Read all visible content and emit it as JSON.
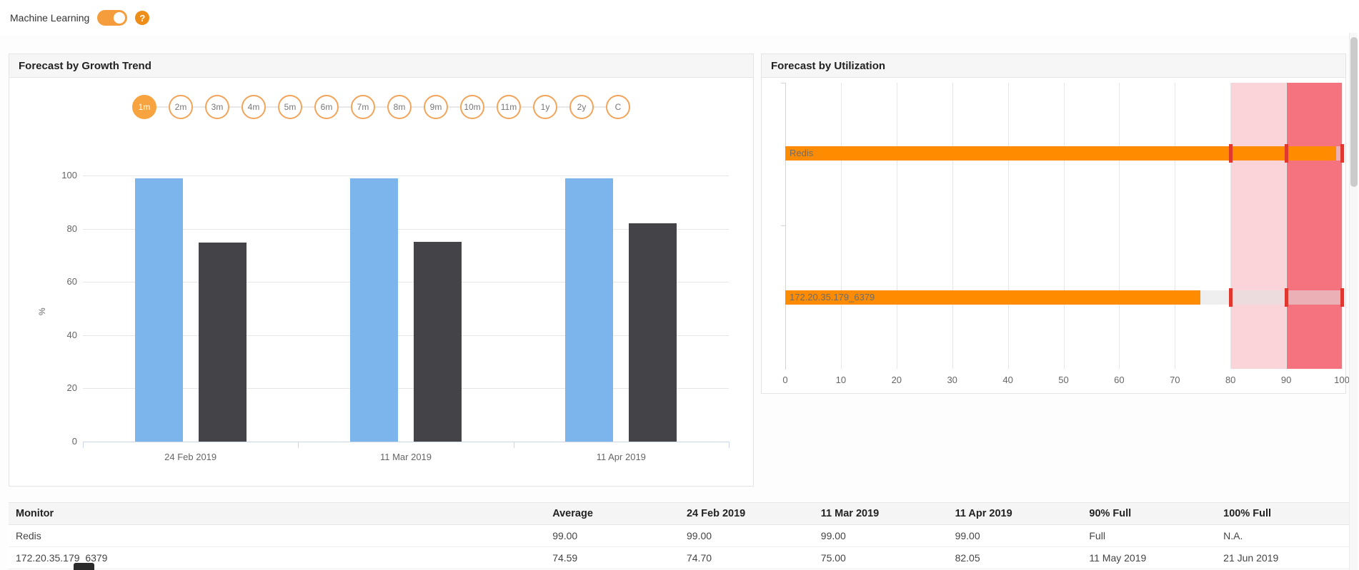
{
  "topbar": {
    "ml_label": "Machine Learning",
    "toggle_on": true,
    "help_icon": "?"
  },
  "growth_panel": {
    "title": "Forecast by Growth Trend",
    "range_buttons": [
      "1m",
      "2m",
      "3m",
      "4m",
      "5m",
      "6m",
      "7m",
      "8m",
      "9m",
      "10m",
      "11m",
      "1y",
      "2y",
      "C"
    ],
    "selected_range": "1m"
  },
  "utilization_panel": {
    "title": "Forecast by Utilization"
  },
  "colors": {
    "accent_orange": "#f7a33f",
    "bar_blue": "#7cb5ec",
    "bar_dark": "#434348",
    "bar_orange": "#ff8c00",
    "threshold_red": "#e0382e",
    "band_light_pink": "#fad4d9",
    "band_red": "#f4737f"
  },
  "chart_data": [
    {
      "type": "bar",
      "title": "Forecast by Growth Trend",
      "categories": [
        "24 Feb 2019",
        "11 Mar 2019",
        "11 Apr 2019"
      ],
      "series": [
        {
          "name": "Redis",
          "color": "#7cb5ec",
          "values": [
            99.0,
            99.0,
            99.0
          ]
        },
        {
          "name": "172.20.35.179_6379",
          "color": "#434348",
          "values": [
            74.7,
            75.0,
            82.05
          ]
        }
      ],
      "xlabel": "",
      "ylabel": "%",
      "ylim": [
        0,
        100
      ],
      "yticks": [
        0,
        20,
        40,
        60,
        80,
        100
      ],
      "grid": true,
      "legend": false
    },
    {
      "type": "bar-horizontal",
      "title": "Forecast by Utilization",
      "categories": [
        "Redis",
        "172.20.35.179_6379"
      ],
      "values": [
        99.0,
        74.59
      ],
      "bar_color": "#ff8c00",
      "threshold_marks": [
        80,
        90,
        100
      ],
      "threshold_color": "#e0382e",
      "plot_bands": [
        {
          "from": 80,
          "to": 90,
          "color": "#fad4d9"
        },
        {
          "from": 90,
          "to": 100,
          "color": "#f4737f"
        }
      ],
      "xlim": [
        0,
        100
      ],
      "xticks": [
        0,
        10,
        20,
        30,
        40,
        50,
        60,
        70,
        80,
        90,
        100
      ],
      "grid": true,
      "legend": false
    }
  ],
  "table": {
    "columns": [
      "Monitor",
      "Average",
      "24 Feb 2019",
      "11 Mar 2019",
      "11 Apr 2019",
      "90% Full",
      "100% Full"
    ],
    "rows": [
      [
        "Redis",
        "99.00",
        "99.00",
        "99.00",
        "99.00",
        "Full",
        "N.A."
      ],
      [
        "172.20.35.179_6379",
        "74.59",
        "74.70",
        "75.00",
        "82.05",
        "11 May 2019",
        "21 Jun 2019"
      ]
    ]
  }
}
